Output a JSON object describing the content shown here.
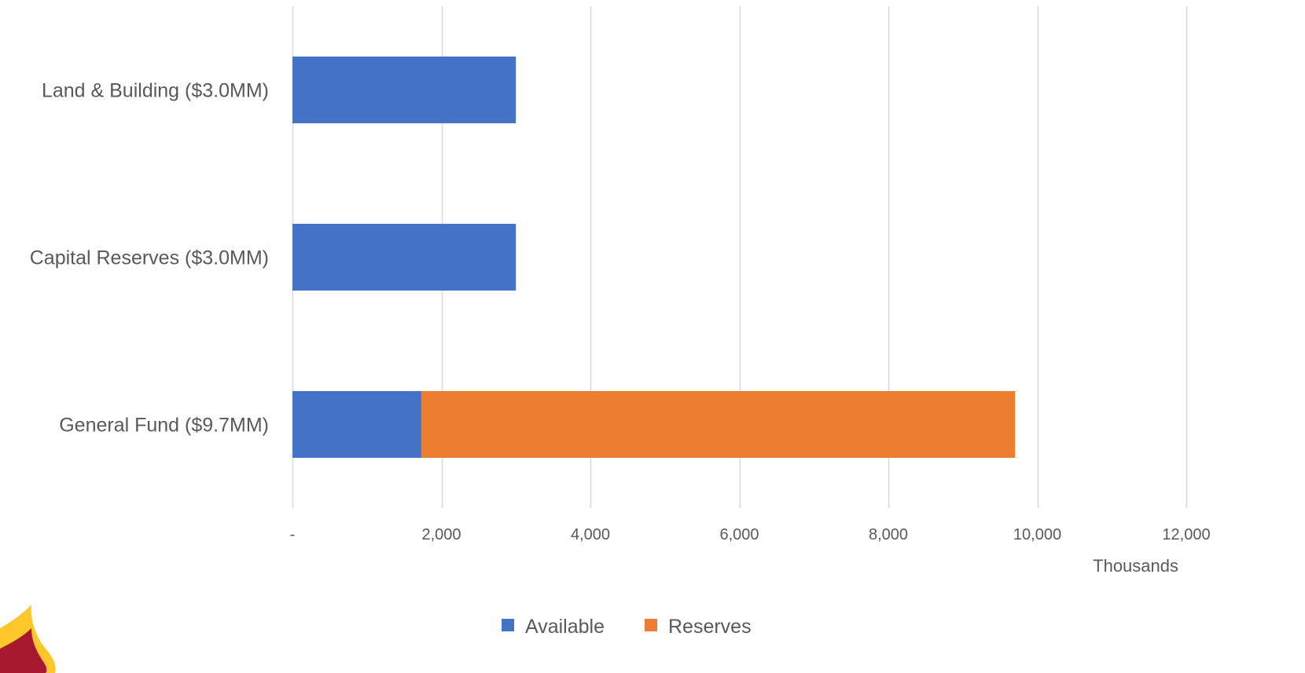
{
  "chart_data": {
    "type": "bar",
    "orientation": "horizontal",
    "stacked": true,
    "categories": [
      "Land & Building ($3.0MM)",
      "Capital Reserves ($3.0MM)",
      "General Fund ($9.7MM)"
    ],
    "series": [
      {
        "name": "Available",
        "color": "#4472c4",
        "values": [
          3000,
          3000,
          1730
        ]
      },
      {
        "name": "Reserves",
        "color": "#ed7d31",
        "values": [
          0,
          0,
          7970
        ]
      }
    ],
    "xlim": [
      0,
      12000
    ],
    "xticks": [
      0,
      2000,
      4000,
      6000,
      8000,
      10000,
      12000
    ],
    "xtick_labels": [
      "-",
      "2,000",
      "4,000",
      "6,000",
      "8,000",
      "10,000",
      "12,000"
    ],
    "units_label": "Thousands",
    "grid": true,
    "legend_position": "bottom"
  },
  "logo": {
    "colors": [
      "#a6192e",
      "#ffc72c"
    ]
  }
}
